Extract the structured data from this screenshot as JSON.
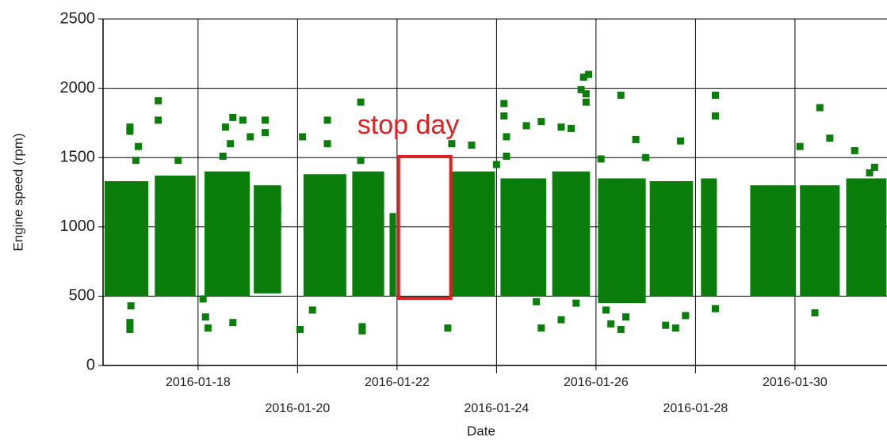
{
  "chart_data": {
    "type": "scatter",
    "xlabel": "Date",
    "ylabel": "Engine speed (rpm)",
    "xlim": [
      16.09,
      31.85
    ],
    "ylim": [
      0,
      2500
    ],
    "yticks": [
      0,
      500,
      1000,
      1500,
      2000,
      2500
    ],
    "xticks": [
      {
        "value": 18,
        "label": "2016-01-18"
      },
      {
        "value": 20,
        "label": "2016-01-20"
      },
      {
        "value": 22,
        "label": "2016-01-22"
      },
      {
        "value": 24,
        "label": "2016-01-24"
      },
      {
        "value": 26,
        "label": "2016-01-26"
      },
      {
        "value": 28,
        "label": "2016-01-28"
      },
      {
        "value": 30,
        "label": "2016-01-30"
      }
    ],
    "grid": true,
    "color": "#0b7d0b",
    "clusters": [
      {
        "x": [
          16.12,
          17.0
        ],
        "y": [
          500,
          1330
        ]
      },
      {
        "x": [
          17.13,
          17.95
        ],
        "y": [
          500,
          1370
        ]
      },
      {
        "x": [
          18.13,
          19.04
        ],
        "y": [
          500,
          1400
        ]
      },
      {
        "x": [
          19.12,
          19.67
        ],
        "y": [
          520,
          1300
        ]
      },
      {
        "x": [
          20.12,
          20.98
        ],
        "y": [
          500,
          1380
        ]
      },
      {
        "x": [
          21.1,
          21.74
        ],
        "y": [
          500,
          1400
        ]
      },
      {
        "x": [
          21.85,
          21.98
        ],
        "y": [
          500,
          1100
        ]
      },
      {
        "x": [
          23.1,
          23.97
        ],
        "y": [
          500,
          1400
        ]
      },
      {
        "x": [
          24.08,
          25.0
        ],
        "y": [
          500,
          1350
        ]
      },
      {
        "x": [
          25.12,
          25.88
        ],
        "y": [
          500,
          1400
        ]
      },
      {
        "x": [
          26.04,
          27.0
        ],
        "y": [
          450,
          1350
        ]
      },
      {
        "x": [
          27.08,
          27.95
        ],
        "y": [
          500,
          1330
        ]
      },
      {
        "x": [
          28.11,
          28.43
        ],
        "y": [
          500,
          1350
        ]
      },
      {
        "x": [
          29.1,
          30.02
        ],
        "y": [
          500,
          1300
        ]
      },
      {
        "x": [
          30.1,
          30.9
        ],
        "y": [
          500,
          1300
        ]
      },
      {
        "x": [
          31.03,
          31.84
        ],
        "y": [
          500,
          1350
        ]
      }
    ],
    "x": [
      16.63,
      16.63,
      16.65,
      16.63,
      16.63,
      16.8,
      16.75,
      17.2,
      17.2,
      17.6,
      18.55,
      18.7,
      18.65,
      18.9,
      19.05,
      19.35,
      19.35,
      18.5,
      18.1,
      18.15,
      18.2,
      18.7,
      20.1,
      20.6,
      20.6,
      20.05,
      20.3,
      21.27,
      21.27,
      21.3,
      21.3,
      23.02,
      23.1,
      23.5,
      24.15,
      24.15,
      24.2,
      24.2,
      24.6,
      24.9,
      24.8,
      24.9,
      25.3,
      25.3,
      25.7,
      25.75,
      25.85,
      25.8,
      25.8,
      25.5,
      26.1,
      26.5,
      26.8,
      27.0,
      26.3,
      26.5,
      26.6,
      27.4,
      27.6,
      27.7,
      27.8,
      28.4,
      28.4,
      28.4,
      30.1,
      30.4,
      30.5,
      30.7,
      31.2,
      31.6,
      31.5,
      25.6,
      26.2,
      24.0,
      19.6,
      19.6
    ],
    "values": [
      1720,
      1690,
      430,
      310,
      260,
      1580,
      1480,
      1910,
      1770,
      1480,
      1720,
      1790,
      1600,
      1770,
      1650,
      1770,
      1680,
      1510,
      480,
      350,
      270,
      310,
      1650,
      1770,
      1600,
      260,
      400,
      1900,
      1480,
      280,
      250,
      270,
      1600,
      1590,
      1890,
      1800,
      1650,
      1510,
      1730,
      1760,
      460,
      270,
      1720,
      330,
      1990,
      2080,
      2100,
      1960,
      1900,
      1710,
      1490,
      1950,
      1630,
      1500,
      300,
      260,
      350,
      290,
      270,
      1620,
      360,
      1950,
      1800,
      410,
      1580,
      380,
      1860,
      1640,
      1550,
      1430,
      1390,
      450,
      400,
      1450,
      1010,
      1130
    ],
    "annotation": {
      "text": "stop day",
      "color": "#e02020",
      "x": [
        22.03,
        23.08
      ],
      "y": [
        485,
        1507
      ]
    }
  }
}
